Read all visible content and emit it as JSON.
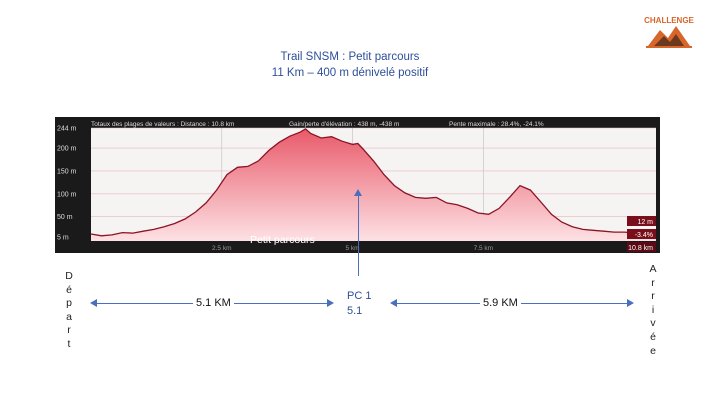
{
  "header": {
    "title_line1": "Trail SNSM : Petit parcours",
    "title_line2": "11 Km – 400 m  dénivelé positif"
  },
  "logo": {
    "text": "CHALLENGE",
    "icon": "mountain-logo-icon",
    "color": "#d8652a"
  },
  "chart_data": {
    "type": "area",
    "stats": {
      "totals": "Totaux des plages de valeurs : Distance : 10.8 km",
      "gain": "Gain/perte d'élévation : 438 m, -438 m",
      "slope": "Pente maximale : 28.4%, -24.1%"
    },
    "series": [
      {
        "name": "Petit parcours",
        "x": [
          0,
          0.2,
          0.4,
          0.6,
          0.8,
          1.0,
          1.2,
          1.4,
          1.6,
          1.8,
          2.0,
          2.2,
          2.4,
          2.6,
          2.8,
          3.0,
          3.2,
          3.4,
          3.6,
          3.8,
          4.0,
          4.1,
          4.2,
          4.4,
          4.6,
          4.8,
          5.0,
          5.1,
          5.2,
          5.4,
          5.6,
          5.8,
          6.0,
          6.2,
          6.4,
          6.6,
          6.8,
          7.0,
          7.2,
          7.4,
          7.6,
          7.8,
          8.0,
          8.2,
          8.4,
          8.6,
          8.8,
          9.0,
          9.2,
          9.4,
          9.6,
          9.8,
          10.0,
          10.2,
          10.4,
          10.6,
          10.8
        ],
        "y": [
          12,
          8,
          10,
          15,
          14,
          18,
          22,
          28,
          35,
          45,
          60,
          80,
          108,
          142,
          158,
          160,
          172,
          195,
          213,
          226,
          235,
          242,
          232,
          222,
          225,
          215,
          208,
          210,
          198,
          172,
          142,
          118,
          102,
          92,
          90,
          92,
          80,
          76,
          68,
          58,
          55,
          68,
          92,
          118,
          108,
          82,
          55,
          38,
          28,
          22,
          20,
          18,
          16,
          16,
          14,
          13,
          12
        ]
      }
    ],
    "xlabel": "",
    "ylabel": "",
    "xlim": [
      0,
      10.8
    ],
    "ylim": [
      -3.4,
      244
    ],
    "x_ticks": [
      2.5,
      5,
      7.5
    ],
    "x_tick_labels": [
      "2.5 km",
      "5 km",
      "7.5 km"
    ],
    "y_ticks": [
      244,
      200,
      150,
      100,
      50,
      5
    ],
    "y_tick_labels": [
      "244 m",
      "200 m",
      "150 m",
      "100 m",
      "50 m",
      "5 m"
    ],
    "right_tags": [
      "12 m",
      "-3.4%",
      "10.8 km"
    ],
    "grid": true,
    "colors": {
      "fill_top": "#e85a6a",
      "fill_bottom": "#fde1e4",
      "line": "#8b1424",
      "background": "#1a1a1a",
      "plot_bg": "#f6f3f3"
    }
  },
  "annotations": {
    "depart": "Départ",
    "arrivee": "Arrivée",
    "segment1": "5.1 KM",
    "segment2": "5.9 KM",
    "checkpoint_name": "PC 1",
    "checkpoint_km": "5.1",
    "arrow_color": "#4a6fbf"
  }
}
